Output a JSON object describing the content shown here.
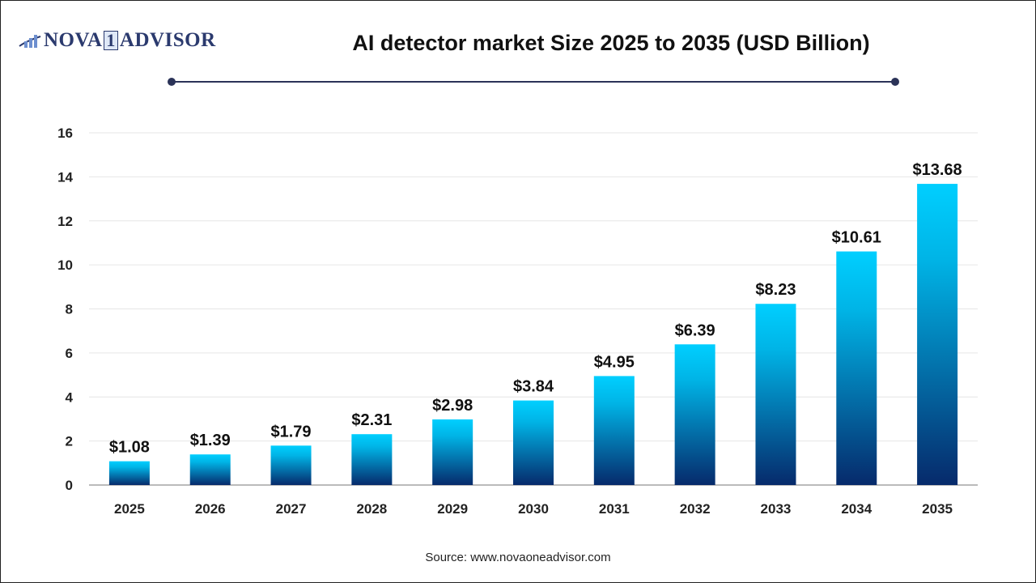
{
  "logo": {
    "text_left": "NOVA",
    "text_mid": "1",
    "text_right": "ADVISOR"
  },
  "source": "Source: www.novaoneadvisor.com",
  "colors": {
    "bar_top": "#00cfff",
    "bar_bottom": "#062a6b",
    "title_rule": "#2b3358"
  },
  "chart_data": {
    "type": "bar",
    "title": "AI detector market Size 2025 to 2035 (USD Billion)",
    "categories": [
      "2025",
      "2026",
      "2027",
      "2028",
      "2029",
      "2030",
      "2031",
      "2032",
      "2033",
      "2034",
      "2035"
    ],
    "values": [
      1.08,
      1.39,
      1.79,
      2.31,
      2.98,
      3.84,
      4.95,
      6.39,
      8.23,
      10.61,
      13.68
    ],
    "data_labels": [
      "$1.08",
      "$1.39",
      "$1.79",
      "$2.31",
      "$2.98",
      "$3.84",
      "$4.95",
      "$6.39",
      "$8.23",
      "$10.61",
      "$13.68"
    ],
    "yticks": [
      0,
      2,
      4,
      6,
      8,
      10,
      12,
      14,
      16
    ],
    "ylim": [
      0,
      16
    ],
    "xlabel": "",
    "ylabel": "",
    "grid": true,
    "legend": "none"
  }
}
